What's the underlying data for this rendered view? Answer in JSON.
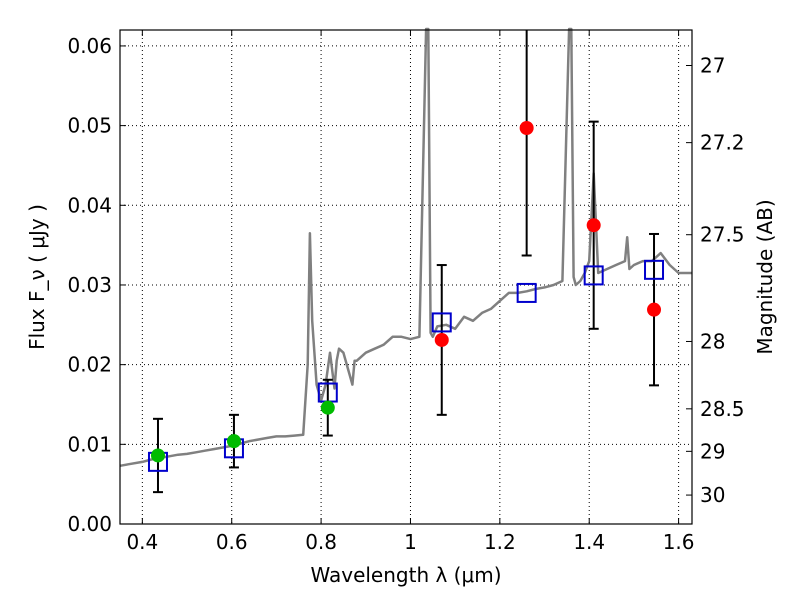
{
  "chart_data": {
    "type": "scatter",
    "xlabel": "Wavelength  λ (μm)",
    "ylabel": "Flux  F_ν  ( μJy )",
    "ylabel_right": "Magnitude (AB)",
    "xlim": [
      0.35,
      1.63
    ],
    "ylim": [
      0.0,
      0.062
    ],
    "grid": true,
    "x_ticks": [
      0.4,
      0.6,
      0.8,
      1.0,
      1.2,
      1.4,
      1.6
    ],
    "x_tick_labels": [
      "0.4",
      "0.6",
      "0.8",
      "1",
      "1.2",
      "1.4",
      "1.6"
    ],
    "y_ticks": [
      0.0,
      0.01,
      0.02,
      0.03,
      0.04,
      0.05,
      0.06
    ],
    "y_tick_labels": [
      "0.00",
      "0.01",
      "0.02",
      "0.03",
      "0.04",
      "0.05",
      "0.06"
    ],
    "right_ticks": [
      {
        "mag": 27,
        "label": "27"
      },
      {
        "mag": 27.2,
        "label": "27.2"
      },
      {
        "mag": 27.5,
        "label": "27.5"
      },
      {
        "mag": 28,
        "label": "28"
      },
      {
        "mag": 28.5,
        "label": "28.5"
      },
      {
        "mag": 29,
        "label": "29"
      },
      {
        "mag": 30,
        "label": "30"
      }
    ],
    "colors": {
      "model": "#808080",
      "green": "#00bb00",
      "red": "#ff0000",
      "square": "#0000cc",
      "errorbar": "#000000"
    },
    "series": [
      {
        "kind": "model_spectrum",
        "x": [
          0.35,
          0.37,
          0.4,
          0.42,
          0.44,
          0.46,
          0.48,
          0.5,
          0.52,
          0.54,
          0.56,
          0.58,
          0.6,
          0.62,
          0.64,
          0.66,
          0.68,
          0.7,
          0.72,
          0.74,
          0.76,
          0.77,
          0.775,
          0.78,
          0.79,
          0.8,
          0.81,
          0.82,
          0.83,
          0.835,
          0.84,
          0.85,
          0.86,
          0.87,
          0.875,
          0.88,
          0.9,
          0.92,
          0.94,
          0.96,
          0.98,
          1.0,
          1.02,
          1.035,
          1.04,
          1.045,
          1.05,
          1.06,
          1.08,
          1.1,
          1.12,
          1.14,
          1.16,
          1.18,
          1.2,
          1.22,
          1.24,
          1.26,
          1.28,
          1.3,
          1.32,
          1.34,
          1.355,
          1.36,
          1.365,
          1.37,
          1.38,
          1.39,
          1.4,
          1.41,
          1.42,
          1.44,
          1.46,
          1.48,
          1.485,
          1.49,
          1.5,
          1.52,
          1.54,
          1.56,
          1.58,
          1.6,
          1.63
        ],
        "y": [
          0.0073,
          0.0075,
          0.0078,
          0.0081,
          0.0083,
          0.0085,
          0.0087,
          0.0088,
          0.009,
          0.0092,
          0.0094,
          0.0096,
          0.0098,
          0.0101,
          0.0104,
          0.0106,
          0.0108,
          0.011,
          0.011,
          0.0111,
          0.0112,
          0.02,
          0.0365,
          0.0255,
          0.0175,
          0.0155,
          0.0175,
          0.0215,
          0.017,
          0.0205,
          0.022,
          0.0215,
          0.0195,
          0.0175,
          0.0205,
          0.0205,
          0.0215,
          0.022,
          0.0225,
          0.0235,
          0.0235,
          0.0232,
          0.0235,
          0.065,
          0.066,
          0.024,
          0.0235,
          0.0248,
          0.025,
          0.0245,
          0.026,
          0.0255,
          0.0265,
          0.027,
          0.028,
          0.029,
          0.029,
          0.0292,
          0.0295,
          0.0297,
          0.03,
          0.0305,
          0.065,
          0.066,
          0.031,
          0.03,
          0.0305,
          0.0315,
          0.033,
          0.044,
          0.0315,
          0.032,
          0.0325,
          0.033,
          0.036,
          0.032,
          0.0325,
          0.033,
          0.033,
          0.034,
          0.0325,
          0.0315,
          0.0315
        ]
      },
      {
        "kind": "green_points",
        "x": [
          0.435,
          0.605,
          0.815
        ],
        "y": [
          0.0086,
          0.0104,
          0.0146
        ],
        "yerr": [
          0.0046,
          0.0033,
          0.0035
        ]
      },
      {
        "kind": "red_points",
        "x": [
          1.07,
          1.26,
          1.41,
          1.545
        ],
        "y": [
          0.0231,
          0.0497,
          0.0375,
          0.0269
        ],
        "yerr": [
          0.0094,
          0.016,
          0.013,
          0.0095
        ]
      },
      {
        "kind": "blue_open_squares",
        "x": [
          0.435,
          0.605,
          0.815,
          1.07,
          1.26,
          1.41,
          1.545
        ],
        "y": [
          0.0078,
          0.0095,
          0.0165,
          0.0253,
          0.029,
          0.0312,
          0.0319
        ]
      }
    ]
  }
}
